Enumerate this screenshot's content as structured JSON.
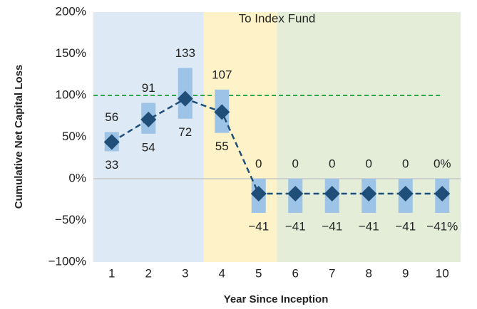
{
  "chart_data": {
    "type": "range",
    "annotation": "To Index Fund",
    "x_label": "Year Since Inception",
    "y_label": "Cumulative Net Capital Loss",
    "categories": [
      "1",
      "2",
      "3",
      "4",
      "5",
      "6",
      "7",
      "8",
      "9",
      "10"
    ],
    "high": {
      "color": "#9dc3e6",
      "values": [
        56,
        91,
        133,
        107,
        0,
        0,
        0,
        0,
        0,
        0
      ],
      "value_labels": [
        "56",
        "91",
        "133",
        "107",
        "0",
        "0",
        "0",
        "0",
        "0",
        "0%"
      ]
    },
    "low": {
      "values": [
        33,
        54,
        72,
        55,
        -41,
        -41,
        -41,
        -41,
        -41,
        -41
      ],
      "value_labels": [
        "33",
        "54",
        "72",
        "55",
        "−41",
        "−41",
        "−41",
        "−41",
        "−41",
        "−41%"
      ]
    },
    "mid": {
      "color": "#1f4e79",
      "values": [
        44,
        71,
        96,
        80,
        -18,
        -18,
        -18,
        -18,
        -18,
        -18
      ]
    },
    "reference_line": {
      "value": 100,
      "color": "#2ea84a"
    },
    "regions": [
      {
        "from": 0,
        "to": 2,
        "color": "#dde9f4"
      },
      {
        "from": 3,
        "to": 4,
        "color": "#fdf2c8"
      },
      {
        "from": 5,
        "to": 9,
        "color": "#e3edd8"
      }
    ],
    "ylim": [
      -100,
      200
    ],
    "yticks": [
      {
        "value": -100,
        "label": "−100%"
      },
      {
        "value": -50,
        "label": "−50%"
      },
      {
        "value": 0,
        "label": "0%"
      },
      {
        "value": 50,
        "label": "50%"
      },
      {
        "value": 100,
        "label": "100%"
      },
      {
        "value": 150,
        "label": "150%"
      },
      {
        "value": 200,
        "label": "200%"
      }
    ],
    "zero_line": true
  }
}
